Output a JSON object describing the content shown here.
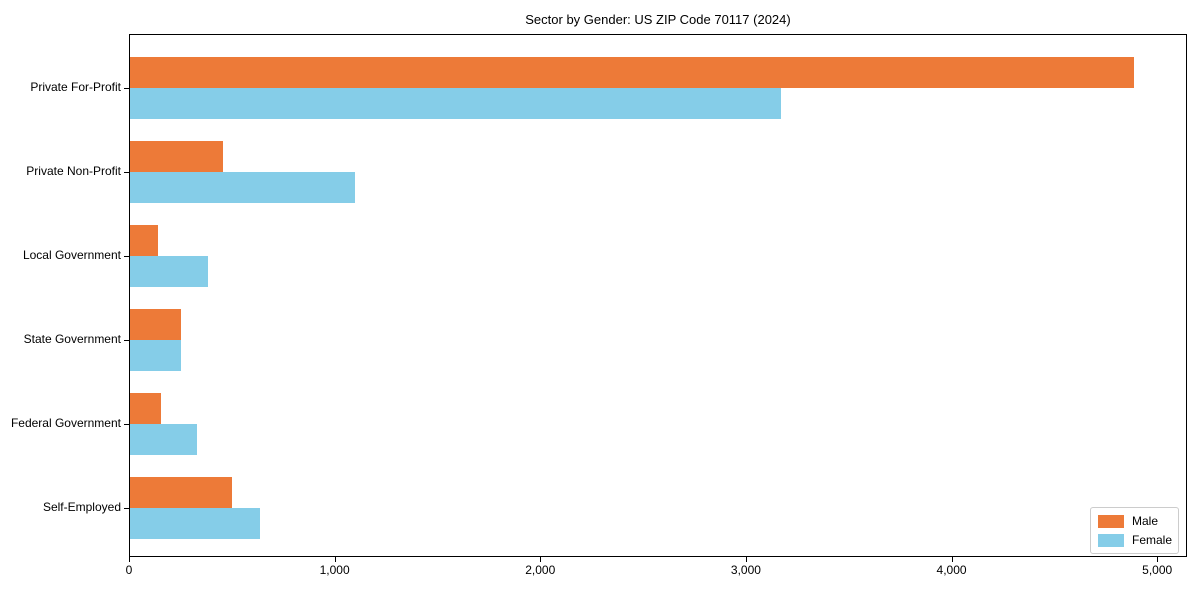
{
  "title": "Sector by Gender: US ZIP Code 70117 (2024)",
  "chart_data": {
    "type": "bar",
    "orientation": "horizontal",
    "title": "Sector by Gender: US ZIP Code 70117 (2024)",
    "xlabel": "",
    "ylabel": "",
    "categories": [
      "Private For-Profit",
      "Private Non-Profit",
      "Local Government",
      "State Government",
      "Federal Government",
      "Self-Employed"
    ],
    "series": [
      {
        "name": "Male",
        "color": "#ED7A38",
        "values": [
          4890,
          455,
          135,
          250,
          150,
          495
        ]
      },
      {
        "name": "Female",
        "color": "#85CDE8",
        "values": [
          3170,
          1095,
          380,
          250,
          325,
          635
        ]
      }
    ],
    "xlim": [
      0,
      5145
    ],
    "x_ticks": [
      0,
      1000,
      2000,
      3000,
      4000,
      5000
    ],
    "x_tick_labels": [
      "0",
      "1,000",
      "2,000",
      "3,000",
      "4,000",
      "5,000"
    ],
    "grid": false,
    "legend_position": "lower right",
    "background_color": "#ffffff",
    "spine_color": "#000000"
  },
  "legend": {
    "items": [
      {
        "label": "Male",
        "color": "#ED7A38"
      },
      {
        "label": "Female",
        "color": "#85CDE8"
      }
    ]
  }
}
